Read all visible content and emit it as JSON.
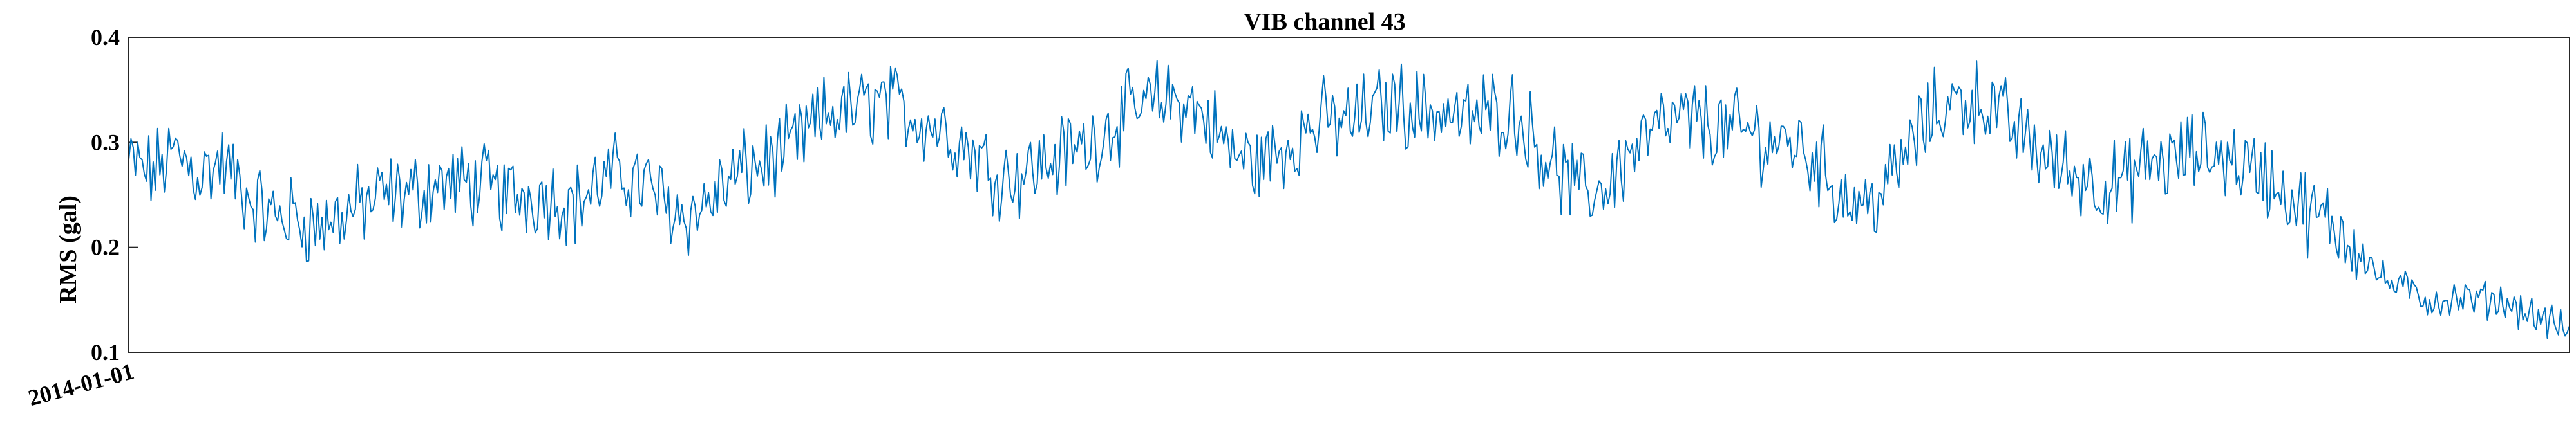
{
  "chart_data": {
    "type": "line",
    "title": "VIB channel 43",
    "ylabel": "RMS (gal)",
    "xlabel": "",
    "ylim": [
      0.1,
      0.4
    ],
    "yticks": [
      "0.1",
      "0.2",
      "0.3",
      "0.4"
    ],
    "x_start": "2014-01-01",
    "xtick_labels": [
      "2014-01-01"
    ],
    "series_color": "#0072BD",
    "grid": false,
    "keypoints": [
      0.28,
      0.27,
      0.29,
      0.27,
      0.28,
      0.25,
      0.23,
      0.23,
      0.22,
      0.23,
      0.24,
      0.25,
      0.25,
      0.26,
      0.26,
      0.26,
      0.25,
      0.25,
      0.25,
      0.24,
      0.26,
      0.27,
      0.26,
      0.24,
      0.23,
      0.25,
      0.27,
      0.28,
      0.29,
      0.31,
      0.33,
      0.33,
      0.34,
      0.33,
      0.32,
      0.31,
      0.29,
      0.27,
      0.27,
      0.28,
      0.29,
      0.3,
      0.32,
      0.33,
      0.34,
      0.34,
      0.32,
      0.29,
      0.28,
      0.29,
      0.31,
      0.32,
      0.32,
      0.33,
      0.34,
      0.33,
      0.33,
      0.32,
      0.33,
      0.33,
      0.3,
      0.27,
      0.25,
      0.26,
      0.29,
      0.31,
      0.32,
      0.32,
      0.31,
      0.31,
      0.3,
      0.3,
      0.28,
      0.25,
      0.24,
      0.26,
      0.3,
      0.33,
      0.34,
      0.34,
      0.32,
      0.3,
      0.28,
      0.27,
      0.26,
      0.26,
      0.28,
      0.28,
      0.29,
      0.29,
      0.28,
      0.27,
      0.25,
      0.23,
      0.22,
      0.2,
      0.17,
      0.16,
      0.15,
      0.15,
      0.15,
      0.15,
      0.14,
      0.13,
      0.12
    ]
  }
}
